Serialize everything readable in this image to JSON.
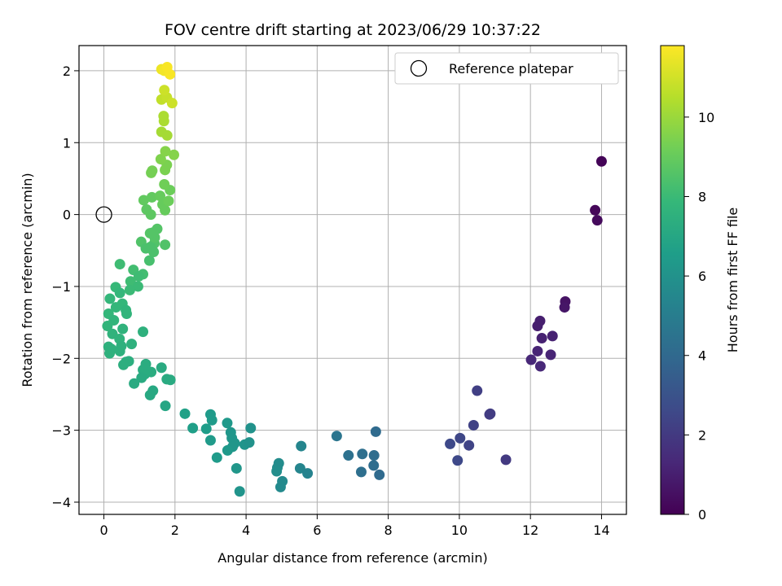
{
  "chart_data": {
    "type": "scatter",
    "title": "FOV centre drift starting at 2023/06/29 10:37:22",
    "xlabel": "Angular distance from reference (arcmin)",
    "ylabel": "Rotation from reference (arcmin)",
    "xlim": [
      -0.7,
      14.7
    ],
    "ylim": [
      -4.17,
      2.35
    ],
    "xticks": [
      0,
      2,
      4,
      6,
      8,
      10,
      12,
      14
    ],
    "yticks": [
      -4,
      -3,
      -2,
      -1,
      0,
      1,
      2
    ],
    "grid": true,
    "legend": {
      "position": "top-right",
      "label": "Reference platepar"
    },
    "reference_point": {
      "x": 0,
      "y": 0
    },
    "colorbar": {
      "label": "Hours from first FF file",
      "range": [
        0,
        11.8
      ],
      "ticks": [
        0,
        2,
        4,
        6,
        8,
        10
      ],
      "colormap": [
        "#440154",
        "#482878",
        "#3e4a89",
        "#31688e",
        "#26828e",
        "#1f9e89",
        "#35b779",
        "#6ece58",
        "#b5de2b",
        "#fde725"
      ]
    },
    "points": [
      {
        "x": 14.0,
        "y": 0.74,
        "c": 0.1
      },
      {
        "x": 13.82,
        "y": 0.06,
        "c": 0.2
      },
      {
        "x": 13.88,
        "y": -0.08,
        "c": 0.3
      },
      {
        "x": 12.98,
        "y": -1.21,
        "c": 0.6
      },
      {
        "x": 12.96,
        "y": -1.29,
        "c": 0.7
      },
      {
        "x": 12.27,
        "y": -1.48,
        "c": 1.0
      },
      {
        "x": 12.2,
        "y": -1.55,
        "c": 1.0
      },
      {
        "x": 12.32,
        "y": -1.72,
        "c": 1.1
      },
      {
        "x": 12.62,
        "y": -1.69,
        "c": 1.1
      },
      {
        "x": 12.2,
        "y": -1.9,
        "c": 1.2
      },
      {
        "x": 12.57,
        "y": -1.95,
        "c": 1.2
      },
      {
        "x": 12.02,
        "y": -2.02,
        "c": 1.3
      },
      {
        "x": 12.28,
        "y": -2.11,
        "c": 1.3
      },
      {
        "x": 10.5,
        "y": -2.45,
        "c": 2.2
      },
      {
        "x": 10.85,
        "y": -2.78,
        "c": 2.1
      },
      {
        "x": 10.87,
        "y": -2.77,
        "c": 2.1
      },
      {
        "x": 10.4,
        "y": -2.93,
        "c": 2.3
      },
      {
        "x": 10.02,
        "y": -3.11,
        "c": 2.5
      },
      {
        "x": 9.74,
        "y": -3.19,
        "c": 2.6
      },
      {
        "x": 10.27,
        "y": -3.21,
        "c": 2.4
      },
      {
        "x": 9.95,
        "y": -3.42,
        "c": 2.6
      },
      {
        "x": 11.31,
        "y": -3.41,
        "c": 2.0
      },
      {
        "x": 6.55,
        "y": -3.08,
        "c": 4.6
      },
      {
        "x": 7.65,
        "y": -3.02,
        "c": 4.1
      },
      {
        "x": 6.88,
        "y": -3.35,
        "c": 4.4
      },
      {
        "x": 7.27,
        "y": -3.33,
        "c": 4.3
      },
      {
        "x": 7.6,
        "y": -3.35,
        "c": 4.2
      },
      {
        "x": 7.59,
        "y": -3.49,
        "c": 4.2
      },
      {
        "x": 7.24,
        "y": -3.58,
        "c": 4.3
      },
      {
        "x": 7.75,
        "y": -3.62,
        "c": 4.1
      },
      {
        "x": 5.55,
        "y": -3.22,
        "c": 5.4
      },
      {
        "x": 4.92,
        "y": -3.46,
        "c": 5.7
      },
      {
        "x": 4.88,
        "y": -3.52,
        "c": 5.7
      },
      {
        "x": 4.86,
        "y": -3.57,
        "c": 5.8
      },
      {
        "x": 5.52,
        "y": -3.53,
        "c": 5.4
      },
      {
        "x": 5.73,
        "y": -3.6,
        "c": 5.3
      },
      {
        "x": 5.02,
        "y": -3.71,
        "c": 5.6
      },
      {
        "x": 4.97,
        "y": -3.79,
        "c": 5.6
      },
      {
        "x": 2.28,
        "y": -2.77,
        "c": 6.7
      },
      {
        "x": 2.5,
        "y": -2.97,
        "c": 6.6
      },
      {
        "x": 3.0,
        "y": -2.78,
        "c": 6.4
      },
      {
        "x": 3.04,
        "y": -2.86,
        "c": 6.4
      },
      {
        "x": 2.88,
        "y": -2.98,
        "c": 6.5
      },
      {
        "x": 3.47,
        "y": -2.9,
        "c": 6.3
      },
      {
        "x": 3.57,
        "y": -3.03,
        "c": 6.2
      },
      {
        "x": 4.13,
        "y": -2.97,
        "c": 6.0
      },
      {
        "x": 3.6,
        "y": -3.11,
        "c": 6.2
      },
      {
        "x": 3.0,
        "y": -3.14,
        "c": 6.4
      },
      {
        "x": 3.68,
        "y": -3.18,
        "c": 6.2
      },
      {
        "x": 3.96,
        "y": -3.2,
        "c": 6.1
      },
      {
        "x": 4.09,
        "y": -3.17,
        "c": 6.0
      },
      {
        "x": 3.62,
        "y": -3.23,
        "c": 6.2
      },
      {
        "x": 3.48,
        "y": -3.28,
        "c": 6.3
      },
      {
        "x": 3.18,
        "y": -3.38,
        "c": 6.4
      },
      {
        "x": 3.73,
        "y": -3.53,
        "c": 6.2
      },
      {
        "x": 3.82,
        "y": -3.85,
        "c": 6.1
      },
      {
        "x": 0.45,
        "y": -0.69,
        "c": 8.1
      },
      {
        "x": 0.33,
        "y": -1.01,
        "c": 7.9
      },
      {
        "x": 0.45,
        "y": -1.09,
        "c": 7.8
      },
      {
        "x": 0.17,
        "y": -1.17,
        "c": 7.8
      },
      {
        "x": 0.52,
        "y": -1.24,
        "c": 7.8
      },
      {
        "x": 0.34,
        "y": -1.29,
        "c": 7.8
      },
      {
        "x": 0.62,
        "y": -1.33,
        "c": 7.7
      },
      {
        "x": 0.13,
        "y": -1.38,
        "c": 7.8
      },
      {
        "x": 0.64,
        "y": -1.38,
        "c": 7.7
      },
      {
        "x": 0.28,
        "y": -1.47,
        "c": 7.7
      },
      {
        "x": 0.1,
        "y": -1.55,
        "c": 7.7
      },
      {
        "x": 0.53,
        "y": -1.59,
        "c": 7.6
      },
      {
        "x": 0.24,
        "y": -1.66,
        "c": 7.6
      },
      {
        "x": 1.1,
        "y": -1.63,
        "c": 7.5
      },
      {
        "x": 0.44,
        "y": -1.73,
        "c": 7.6
      },
      {
        "x": 0.13,
        "y": -1.84,
        "c": 7.5
      },
      {
        "x": 0.78,
        "y": -1.8,
        "c": 7.5
      },
      {
        "x": 0.21,
        "y": -1.87,
        "c": 7.5
      },
      {
        "x": 0.16,
        "y": -1.93,
        "c": 7.5
      },
      {
        "x": 0.45,
        "y": -1.9,
        "c": 7.5
      },
      {
        "x": 0.49,
        "y": -1.83,
        "c": 7.5
      },
      {
        "x": 0.62,
        "y": -2.05,
        "c": 7.4
      },
      {
        "x": 0.7,
        "y": -2.04,
        "c": 7.4
      },
      {
        "x": 0.55,
        "y": -2.09,
        "c": 7.4
      },
      {
        "x": 1.18,
        "y": -2.08,
        "c": 7.3
      },
      {
        "x": 1.1,
        "y": -2.16,
        "c": 7.3
      },
      {
        "x": 1.33,
        "y": -2.19,
        "c": 7.3
      },
      {
        "x": 1.15,
        "y": -2.22,
        "c": 7.3
      },
      {
        "x": 1.62,
        "y": -2.13,
        "c": 7.2
      },
      {
        "x": 1.06,
        "y": -2.27,
        "c": 7.2
      },
      {
        "x": 1.77,
        "y": -2.29,
        "c": 7.2
      },
      {
        "x": 1.87,
        "y": -2.3,
        "c": 7.2
      },
      {
        "x": 0.85,
        "y": -2.35,
        "c": 7.2
      },
      {
        "x": 1.38,
        "y": -2.45,
        "c": 7.1
      },
      {
        "x": 1.3,
        "y": -2.51,
        "c": 7.1
      },
      {
        "x": 1.73,
        "y": -2.66,
        "c": 7.0
      },
      {
        "x": 0.83,
        "y": -0.77,
        "c": 8.2
      },
      {
        "x": 1.1,
        "y": -0.83,
        "c": 8.2
      },
      {
        "x": 0.98,
        "y": -0.86,
        "c": 8.1
      },
      {
        "x": 0.75,
        "y": -0.93,
        "c": 8.1
      },
      {
        "x": 0.8,
        "y": -0.99,
        "c": 8.1
      },
      {
        "x": 0.96,
        "y": -1.0,
        "c": 8.0
      },
      {
        "x": 0.73,
        "y": -1.05,
        "c": 8.0
      },
      {
        "x": 1.28,
        "y": -0.64,
        "c": 8.3
      },
      {
        "x": 1.05,
        "y": -0.38,
        "c": 8.5
      },
      {
        "x": 1.42,
        "y": -0.4,
        "c": 8.5
      },
      {
        "x": 1.72,
        "y": -0.42,
        "c": 8.5
      },
      {
        "x": 1.31,
        "y": -0.45,
        "c": 8.4
      },
      {
        "x": 1.18,
        "y": -0.47,
        "c": 8.4
      },
      {
        "x": 1.4,
        "y": -0.52,
        "c": 8.4
      },
      {
        "x": 1.5,
        "y": -0.2,
        "c": 8.6
      },
      {
        "x": 1.38,
        "y": -0.25,
        "c": 8.6
      },
      {
        "x": 1.43,
        "y": -0.32,
        "c": 8.6
      },
      {
        "x": 1.3,
        "y": -0.26,
        "c": 8.6
      },
      {
        "x": 1.12,
        "y": 0.2,
        "c": 8.9
      },
      {
        "x": 1.2,
        "y": 0.07,
        "c": 8.8
      },
      {
        "x": 1.32,
        "y": 0.0,
        "c": 8.8
      },
      {
        "x": 1.35,
        "y": 0.24,
        "c": 8.9
      },
      {
        "x": 1.58,
        "y": 0.26,
        "c": 9.0
      },
      {
        "x": 1.65,
        "y": 0.14,
        "c": 9.0
      },
      {
        "x": 1.72,
        "y": 0.06,
        "c": 9.0
      },
      {
        "x": 1.82,
        "y": 0.19,
        "c": 9.1
      },
      {
        "x": 1.86,
        "y": 0.34,
        "c": 9.1
      },
      {
        "x": 1.7,
        "y": 0.42,
        "c": 9.2
      },
      {
        "x": 1.33,
        "y": 0.58,
        "c": 9.3
      },
      {
        "x": 1.36,
        "y": 0.61,
        "c": 9.3
      },
      {
        "x": 1.72,
        "y": 0.62,
        "c": 9.4
      },
      {
        "x": 1.77,
        "y": 0.69,
        "c": 9.4
      },
      {
        "x": 1.6,
        "y": 0.77,
        "c": 9.5
      },
      {
        "x": 1.73,
        "y": 0.88,
        "c": 9.6
      },
      {
        "x": 1.97,
        "y": 0.83,
        "c": 9.6
      },
      {
        "x": 1.62,
        "y": 1.15,
        "c": 10.2
      },
      {
        "x": 1.78,
        "y": 1.1,
        "c": 10.2
      },
      {
        "x": 1.69,
        "y": 1.3,
        "c": 10.3
      },
      {
        "x": 1.68,
        "y": 1.37,
        "c": 10.3
      },
      {
        "x": 1.62,
        "y": 1.6,
        "c": 10.7
      },
      {
        "x": 1.77,
        "y": 1.63,
        "c": 10.8
      },
      {
        "x": 1.92,
        "y": 1.55,
        "c": 10.9
      },
      {
        "x": 1.7,
        "y": 1.73,
        "c": 10.9
      },
      {
        "x": 1.62,
        "y": 2.02,
        "c": 11.5
      },
      {
        "x": 1.7,
        "y": 2.0,
        "c": 11.6
      },
      {
        "x": 1.78,
        "y": 2.05,
        "c": 11.7
      },
      {
        "x": 1.86,
        "y": 1.95,
        "c": 11.7
      }
    ]
  }
}
